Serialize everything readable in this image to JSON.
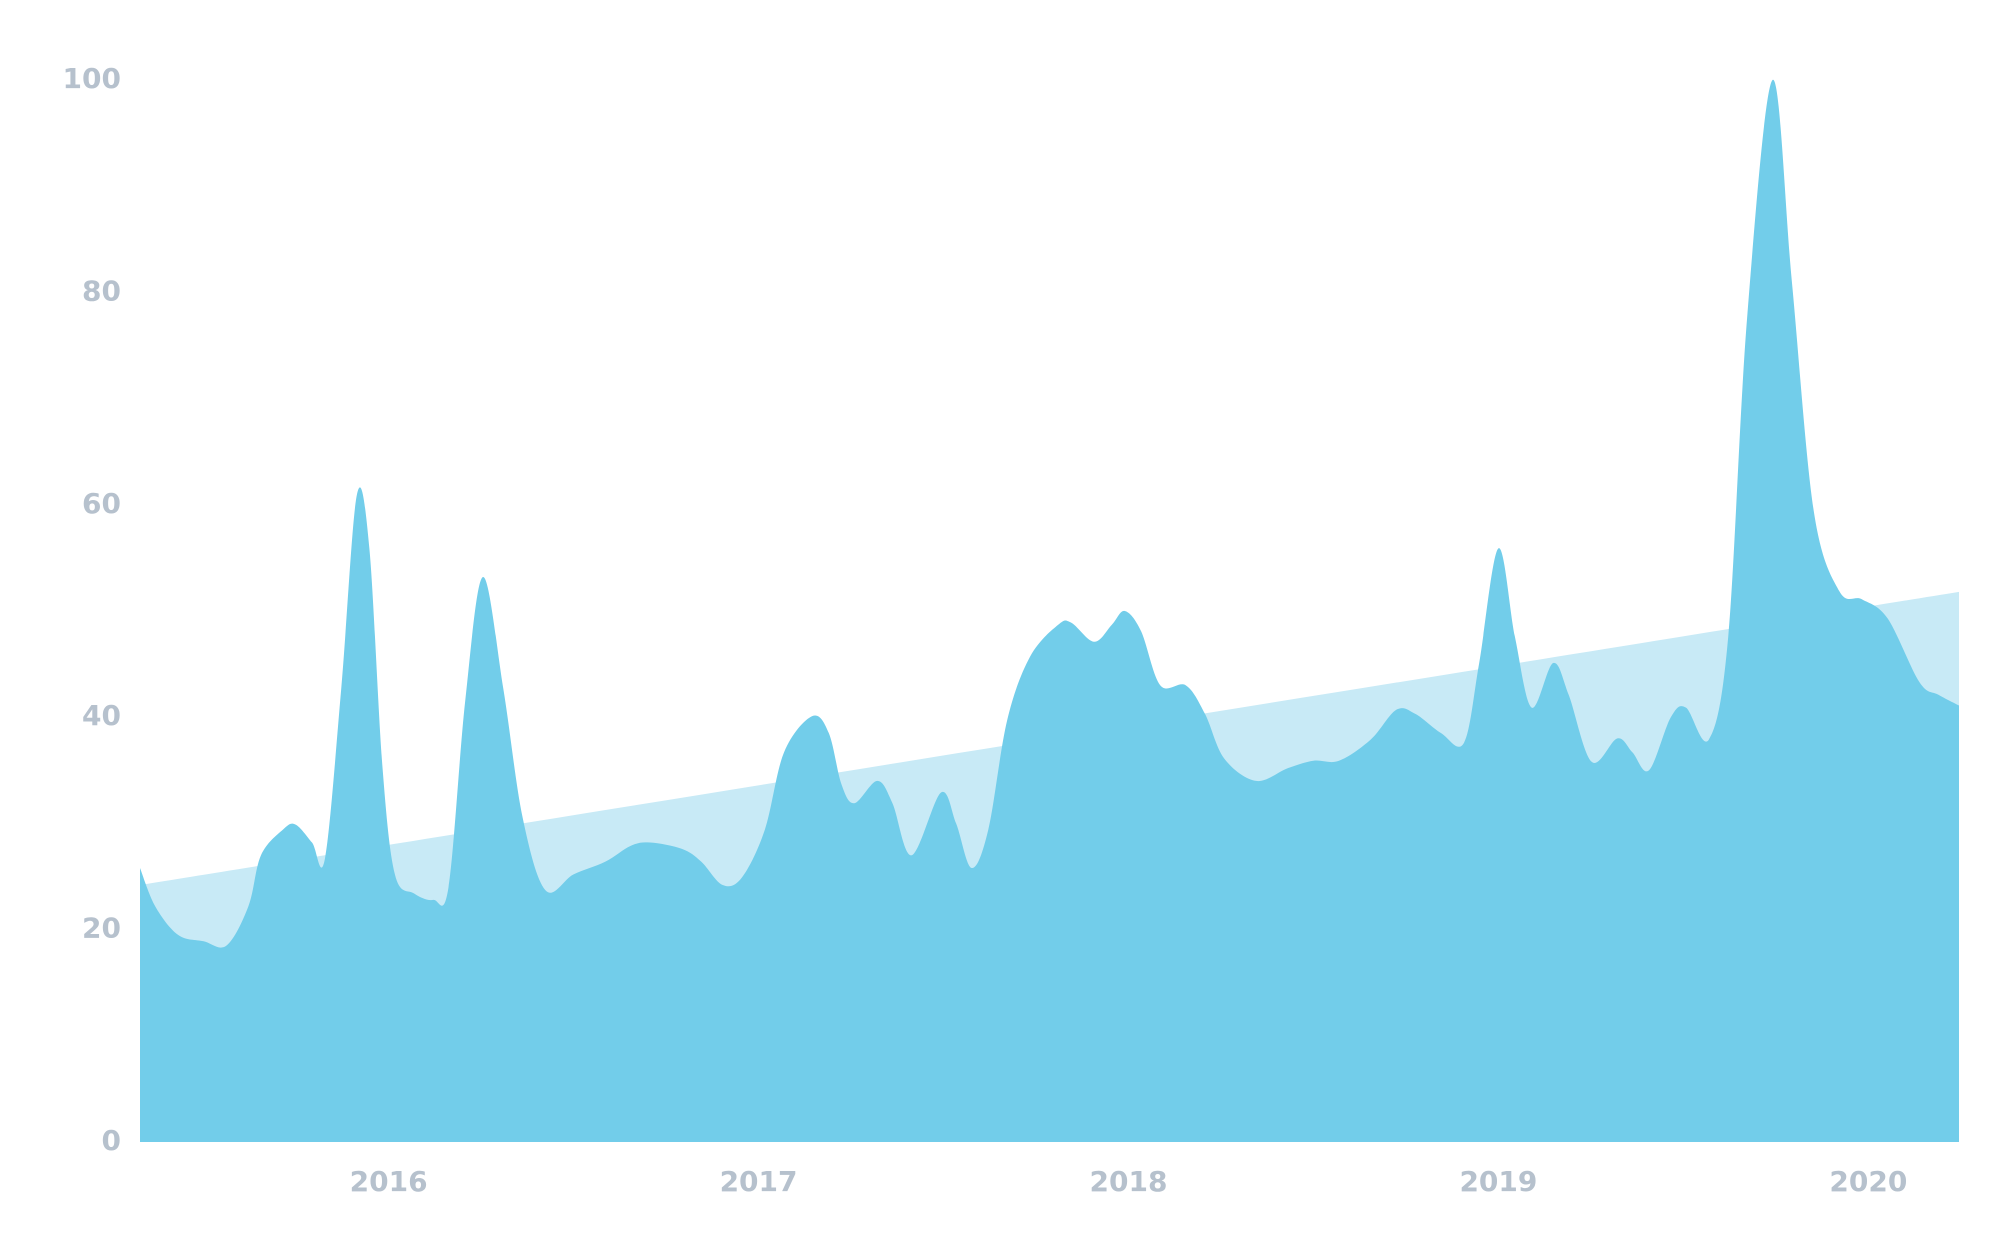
{
  "chart_data": {
    "type": "area",
    "x": [
      2015.328,
      2015.369,
      2015.431,
      2015.5,
      2015.562,
      2015.621,
      2015.655,
      2015.714,
      2015.748,
      2015.793,
      2015.828,
      2015.872,
      2015.914,
      2015.948,
      2015.983,
      2016.017,
      2016.069,
      2016.121,
      2016.162,
      2016.207,
      2016.255,
      2016.31,
      2016.362,
      2016.424,
      2016.5,
      2016.586,
      2016.655,
      2016.707,
      2016.793,
      2016.845,
      2016.903,
      2016.955,
      2017.017,
      2017.069,
      2017.145,
      2017.19,
      2017.224,
      2017.259,
      2017.321,
      2017.362,
      2017.414,
      2017.493,
      2017.534,
      2017.576,
      2017.621,
      2017.672,
      2017.734,
      2017.81,
      2017.845,
      2017.907,
      2017.955,
      2017.99,
      2018.034,
      2018.086,
      2018.155,
      2018.207,
      2018.259,
      2018.345,
      2018.431,
      2018.5,
      2018.569,
      2018.655,
      2018.724,
      2018.776,
      2018.845,
      2018.907,
      2018.948,
      2019,
      2019.045,
      2019.09,
      2019.148,
      2019.19,
      2019.252,
      2019.321,
      2019.362,
      2019.407,
      2019.466,
      2019.507,
      2019.569,
      2019.621,
      2019.672,
      2019.741,
      2019.793,
      2019.852,
      2019.921,
      2019.983,
      2020.052,
      2020.138,
      2020.19,
      2020.245
    ],
    "series": [
      {
        "color": "#c8eaf6",
        "x": [
          2015.328,
          2020.245
        ],
        "values": [
          24.2,
          51.8
        ]
      },
      {
        "color": "#72cdea",
        "values": [
          25.8,
          22.2,
          19.5,
          18.9,
          18.5,
          22.2,
          27,
          29.4,
          29.9,
          28.2,
          26.7,
          42.7,
          60.9,
          55.9,
          35.5,
          25.2,
          23.4,
          22.8,
          24,
          41.5,
          53.2,
          42.7,
          30.6,
          23.7,
          25.2,
          26.4,
          27.9,
          28.2,
          27.6,
          26.4,
          24.2,
          24.9,
          29.4,
          36.7,
          40.1,
          38.5,
          33.7,
          31.9,
          34,
          31.9,
          27,
          32.9,
          30,
          25.8,
          29.4,
          39.7,
          45.7,
          48.7,
          48.9,
          47.1,
          48.7,
          50,
          48.1,
          43,
          43,
          40.3,
          36.1,
          34,
          35.2,
          35.9,
          35.9,
          37.9,
          40.7,
          40.3,
          38.5,
          37.6,
          45.1,
          55.9,
          47.5,
          40.9,
          45.1,
          42.1,
          35.8,
          38,
          36.7,
          35,
          40,
          40.9,
          37.9,
          47.5,
          77.5,
          100,
          81.1,
          59.5,
          51.9,
          51.1,
          49.3,
          43.3,
          42.1,
          41.1
        ]
      }
    ],
    "xlim": [
      2015.328,
      2020.245
    ],
    "xticks": [
      2016,
      2017,
      2018,
      2019,
      2020
    ],
    "ylim": [
      0,
      100
    ],
    "yticks": [
      0,
      20,
      40,
      60,
      80,
      100
    ],
    "grid": false
  }
}
